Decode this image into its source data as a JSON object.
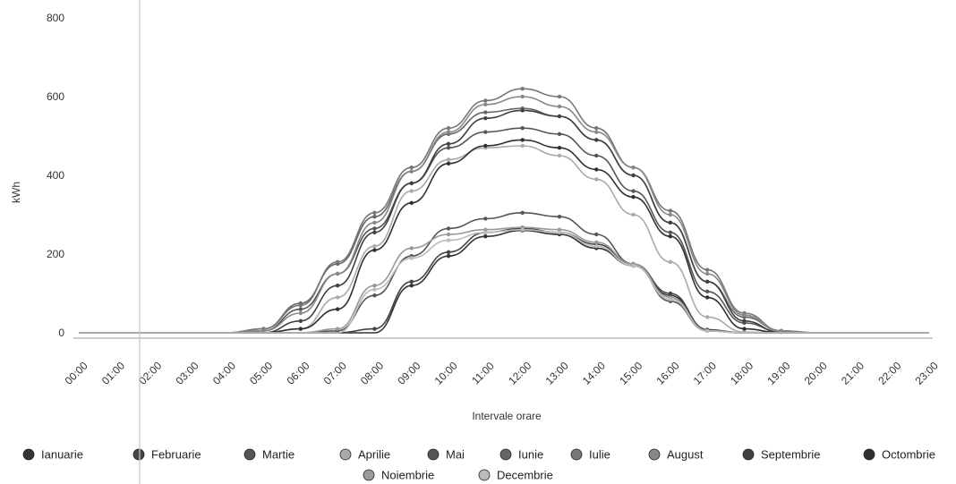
{
  "chart_data": {
    "type": "line",
    "title": "",
    "xlabel": "Intervale orare",
    "ylabel": "kWh",
    "ylim": [
      0,
      800
    ],
    "yticks": [
      0,
      200,
      400,
      600,
      800
    ],
    "grid": false,
    "legend_position": "bottom",
    "categories": [
      "00:00",
      "01:00",
      "02:00",
      "03:00",
      "04:00",
      "05:00",
      "06:00",
      "07:00",
      "08:00",
      "09:00",
      "10:00",
      "11:00",
      "12:00",
      "13:00",
      "14:00",
      "15:00",
      "16:00",
      "17:00",
      "18:00",
      "19:00",
      "20:00",
      "21:00",
      "22:00",
      "23:00"
    ],
    "series": [
      {
        "name": "Ianuarie",
        "color": "#333333",
        "values": [
          0,
          0,
          0,
          0,
          0,
          0,
          0,
          0,
          0,
          120,
          195,
          245,
          260,
          250,
          215,
          170,
          95,
          5,
          0,
          0,
          0,
          0,
          0,
          0
        ]
      },
      {
        "name": "Februarie",
        "color": "#444444",
        "values": [
          0,
          0,
          0,
          0,
          0,
          0,
          0,
          0,
          10,
          130,
          205,
          255,
          265,
          255,
          225,
          175,
          100,
          8,
          0,
          0,
          0,
          0,
          0,
          0
        ]
      },
      {
        "name": "Martie",
        "color": "#555555",
        "values": [
          0,
          0,
          0,
          0,
          0,
          0,
          0,
          5,
          95,
          195,
          265,
          290,
          305,
          295,
          250,
          175,
          80,
          5,
          0,
          0,
          0,
          0,
          0,
          0
        ]
      },
      {
        "name": "Aprilie",
        "color": "#aaaaaa",
        "values": [
          0,
          0,
          0,
          0,
          0,
          0,
          10,
          90,
          220,
          360,
          440,
          470,
          475,
          450,
          390,
          300,
          180,
          40,
          2,
          0,
          0,
          0,
          0,
          0
        ]
      },
      {
        "name": "Mai",
        "color": "#555555",
        "values": [
          0,
          0,
          0,
          0,
          0,
          5,
          60,
          150,
          265,
          380,
          470,
          510,
          520,
          505,
          450,
          360,
          255,
          105,
          25,
          2,
          0,
          0,
          0,
          0
        ]
      },
      {
        "name": "Iunie",
        "color": "#666666",
        "values": [
          0,
          0,
          0,
          0,
          0,
          10,
          75,
          175,
          295,
          410,
          505,
          560,
          570,
          550,
          490,
          400,
          280,
          130,
          40,
          5,
          0,
          0,
          0,
          0
        ]
      },
      {
        "name": "Iulie",
        "color": "#777777",
        "values": [
          0,
          0,
          0,
          0,
          0,
          10,
          70,
          180,
          305,
          420,
          520,
          590,
          620,
          600,
          520,
          420,
          310,
          160,
          50,
          5,
          0,
          0,
          0,
          0
        ]
      },
      {
        "name": "August",
        "color": "#888888",
        "values": [
          0,
          0,
          0,
          0,
          0,
          5,
          50,
          150,
          280,
          410,
          510,
          580,
          600,
          575,
          510,
          420,
          300,
          150,
          45,
          3,
          0,
          0,
          0,
          0
        ]
      },
      {
        "name": "Septembrie",
        "color": "#404040",
        "values": [
          0,
          0,
          0,
          0,
          0,
          0,
          30,
          120,
          255,
          380,
          480,
          545,
          565,
          550,
          490,
          400,
          280,
          130,
          30,
          0,
          0,
          0,
          0,
          0
        ]
      },
      {
        "name": "Octombrie",
        "color": "#303030",
        "values": [
          0,
          0,
          0,
          0,
          0,
          0,
          10,
          60,
          210,
          330,
          430,
          475,
          490,
          470,
          415,
          345,
          245,
          90,
          10,
          0,
          0,
          0,
          0,
          0
        ]
      },
      {
        "name": "Noiembrie",
        "color": "#999999",
        "values": [
          0,
          0,
          0,
          0,
          0,
          0,
          0,
          10,
          120,
          215,
          250,
          262,
          268,
          262,
          230,
          175,
          90,
          5,
          0,
          0,
          0,
          0,
          0,
          0
        ]
      },
      {
        "name": "Decembrie",
        "color": "#bbbbbb",
        "values": [
          0,
          0,
          0,
          0,
          0,
          0,
          0,
          0,
          110,
          190,
          235,
          255,
          262,
          255,
          220,
          170,
          85,
          5,
          0,
          0,
          0,
          0,
          0,
          0
        ]
      }
    ]
  }
}
